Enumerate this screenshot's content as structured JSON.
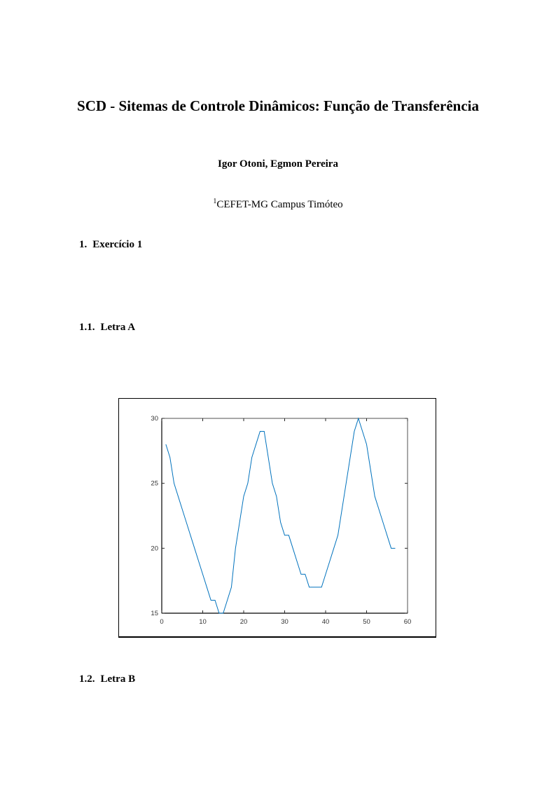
{
  "title": "SCD - Sitemas de Controle Dinâmicos: Função de Transferência",
  "authors": "Igor Otoni, Egmon Pereira",
  "affiliation": {
    "mark": "1",
    "text": "CEFET-MG Campus Timóteo"
  },
  "sections": [
    {
      "number": "1.",
      "title": "Exercício 1"
    },
    {
      "number": "1.1.",
      "title": "Letra A"
    },
    {
      "number": "1.2.",
      "title": "Letra B"
    }
  ],
  "chart_data": {
    "type": "line",
    "title": "",
    "xlabel": "",
    "ylabel": "",
    "xlim": [
      0,
      60
    ],
    "ylim": [
      15,
      30
    ],
    "xticks": [
      "0",
      "10",
      "20",
      "30",
      "40",
      "50",
      "60"
    ],
    "yticks": [
      "15",
      "20",
      "25",
      "30"
    ],
    "grid": false,
    "line_color": "#0072bd",
    "x": [
      1,
      2,
      3,
      4,
      5,
      6,
      7,
      8,
      9,
      10,
      11,
      12,
      13,
      14,
      15,
      16,
      17,
      18,
      19,
      20,
      21,
      22,
      23,
      24,
      25,
      26,
      27,
      28,
      29,
      30,
      31,
      32,
      33,
      34,
      35,
      36,
      37,
      38,
      39,
      40,
      41,
      42,
      43,
      44,
      45,
      46,
      47,
      48,
      49,
      50,
      51,
      52,
      53,
      54,
      55,
      56,
      57
    ],
    "y": [
      28,
      27,
      25,
      24,
      23,
      22,
      21,
      20,
      19,
      18,
      17,
      16,
      16,
      15,
      15,
      16,
      17,
      20,
      22,
      24,
      25,
      27,
      28,
      29,
      29,
      27,
      25,
      24,
      22,
      21,
      21,
      20,
      19,
      18,
      18,
      17,
      17,
      17,
      17,
      18,
      19,
      20,
      21,
      23,
      25,
      27,
      29,
      30,
      29,
      28,
      26,
      24,
      23,
      22,
      21,
      20,
      20
    ]
  }
}
